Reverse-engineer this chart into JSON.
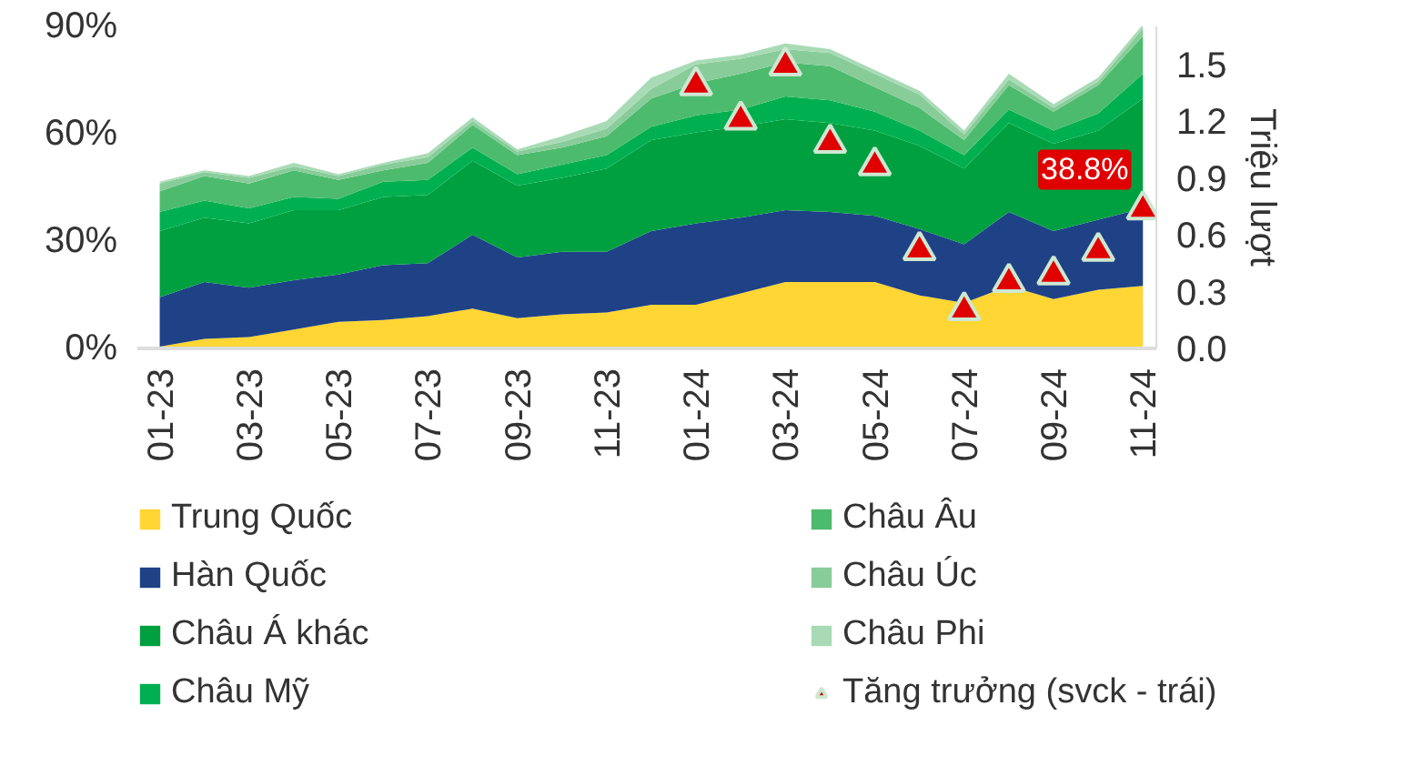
{
  "chart_data": {
    "type": "area",
    "stacked": true,
    "y2label": "Triệu lượt",
    "categories": [
      "01-23",
      null,
      "03-23",
      null,
      "05-23",
      null,
      "07-23",
      null,
      "09-23",
      null,
      "11-23",
      null,
      "01-24",
      null,
      "03-24",
      null,
      "05-24",
      null,
      "07-24",
      null,
      "09-24",
      null,
      "11-24"
    ],
    "series": [
      {
        "name": "Trung Quốc",
        "color": "#ffd633",
        "axis": "y2",
        "values": [
          0.01,
          0.05,
          0.06,
          0.1,
          0.14,
          0.15,
          0.17,
          0.21,
          0.16,
          0.18,
          0.19,
          0.23,
          0.23,
          0.29,
          0.35,
          0.35,
          0.35,
          0.28,
          0.24,
          0.33,
          0.26,
          0.31,
          0.33
        ]
      },
      {
        "name": "Hàn Quốc",
        "color": "#1f4287",
        "axis": "y2",
        "values": [
          0.26,
          0.3,
          0.26,
          0.26,
          0.25,
          0.29,
          0.28,
          0.39,
          0.32,
          0.33,
          0.32,
          0.39,
          0.43,
          0.4,
          0.38,
          0.37,
          0.35,
          0.35,
          0.31,
          0.39,
          0.36,
          0.37,
          0.41
        ]
      },
      {
        "name": "Châu Á khác",
        "color": "#00a040",
        "axis": "y2",
        "values": [
          0.35,
          0.34,
          0.34,
          0.37,
          0.34,
          0.36,
          0.36,
          0.39,
          0.38,
          0.39,
          0.44,
          0.48,
          0.48,
          0.48,
          0.48,
          0.47,
          0.45,
          0.44,
          0.4,
          0.47,
          0.46,
          0.47,
          0.58
        ]
      },
      {
        "name": "Châu Mỹ",
        "color": "#00b050",
        "axis": "y2",
        "values": [
          0.1,
          0.09,
          0.08,
          0.07,
          0.06,
          0.08,
          0.08,
          0.07,
          0.06,
          0.07,
          0.07,
          0.07,
          0.09,
          0.09,
          0.12,
          0.12,
          0.1,
          0.08,
          0.07,
          0.07,
          0.07,
          0.09,
          0.13
        ]
      },
      {
        "name": "Châu Âu",
        "color": "#4dbb6d",
        "axis": "y2",
        "values": [
          0.11,
          0.13,
          0.13,
          0.14,
          0.1,
          0.06,
          0.09,
          0.12,
          0.1,
          0.09,
          0.1,
          0.15,
          0.17,
          0.19,
          0.18,
          0.18,
          0.13,
          0.12,
          0.08,
          0.13,
          0.1,
          0.15,
          0.2
        ]
      },
      {
        "name": "Châu Úc",
        "color": "#88cc99",
        "axis": "y2",
        "values": [
          0.04,
          0.02,
          0.03,
          0.02,
          0.02,
          0.03,
          0.03,
          0.02,
          0.02,
          0.03,
          0.04,
          0.05,
          0.1,
          0.08,
          0.07,
          0.07,
          0.07,
          0.07,
          0.03,
          0.03,
          0.02,
          0.02,
          0.04
        ]
      },
      {
        "name": "Châu Phi",
        "color": "#a8dbb5",
        "axis": "y2",
        "values": [
          0.01,
          0.01,
          0.01,
          0.02,
          0.01,
          0.01,
          0.02,
          0.02,
          0.01,
          0.03,
          0.04,
          0.06,
          0.02,
          0.02,
          0.03,
          0.02,
          0.02,
          0.02,
          0.02,
          0.03,
          0.02,
          0.02,
          0.02
        ]
      },
      {
        "name": "Tăng trưởng (svck - trái)",
        "color": "#e00000",
        "type": "scatter",
        "marker": "triangle",
        "axis": "y",
        "values": [
          null,
          null,
          null,
          null,
          null,
          null,
          null,
          null,
          null,
          null,
          null,
          null,
          73.5,
          63.9,
          79,
          57.4,
          51.1,
          27.4,
          10.6,
          18.5,
          20.6,
          27.2,
          38.8
        ]
      }
    ],
    "ylim": [
      0,
      90
    ],
    "yticks": [
      {
        "value": 0,
        "label": "0%"
      },
      {
        "value": 30,
        "label": "30%"
      },
      {
        "value": 60,
        "label": "60%"
      },
      {
        "value": 90,
        "label": "90%"
      }
    ],
    "y2lim": [
      0,
      1.7
    ],
    "y2ticks": [
      {
        "value": 0,
        "label": "0.0"
      },
      0.3,
      0.6,
      0.9,
      1.2,
      1.5
    ],
    "annotations": [
      {
        "text": "38.8%",
        "x": "11-24",
        "y": 38.8
      }
    ],
    "grid": false,
    "legend": "bottom"
  }
}
